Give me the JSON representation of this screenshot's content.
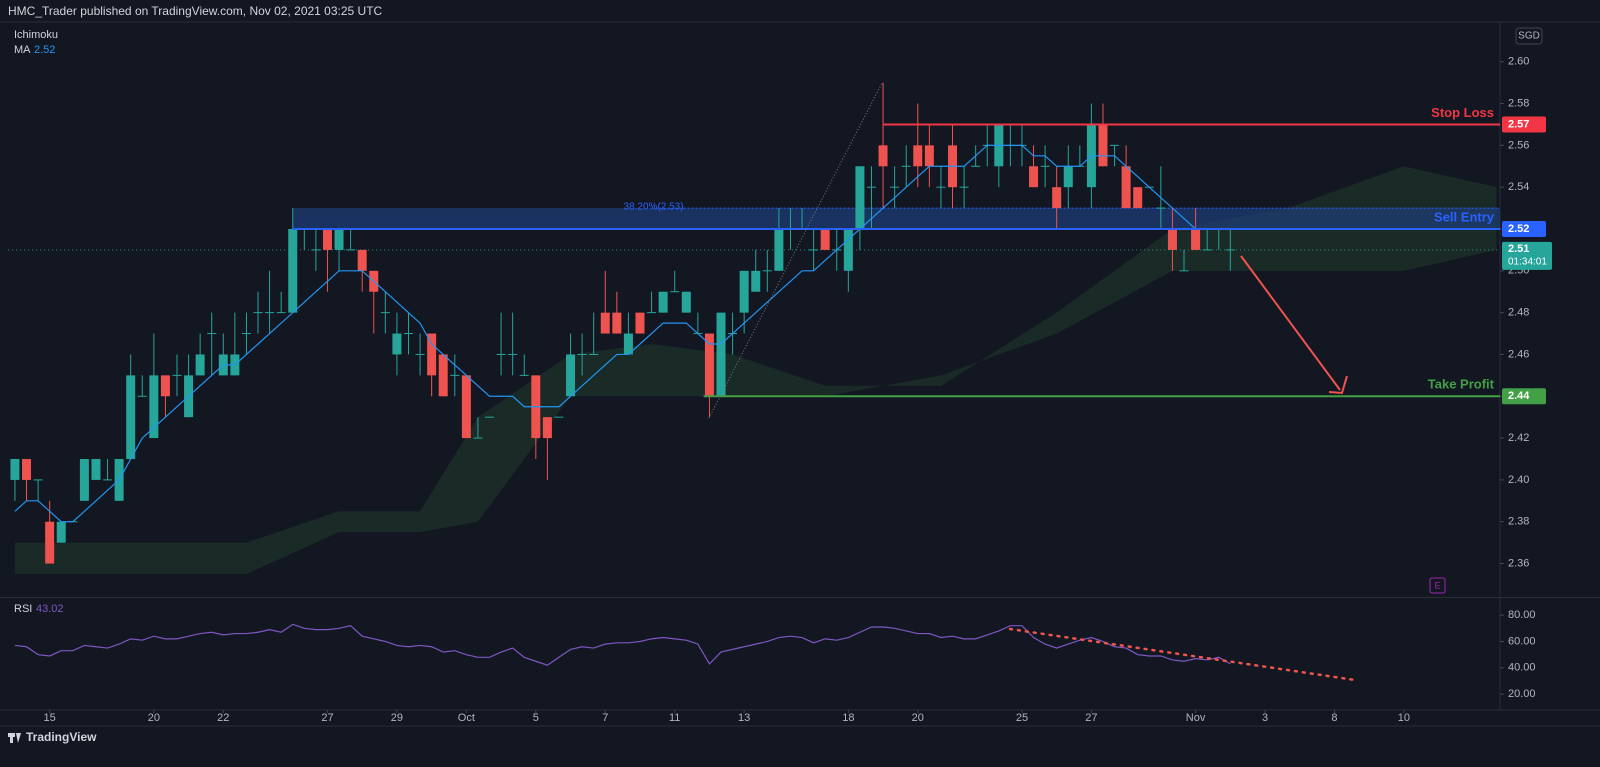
{
  "header": {
    "title": "HMC_Trader published on TradingView.com, Nov 02, 2021 03:25 UTC",
    "currency": "SGD"
  },
  "footer": {
    "brand": "TradingView"
  },
  "chart_data": [
    {
      "type": "candlestick",
      "up_color": "#26a69a",
      "down_color": "#ef5350",
      "xlim": [
        -0.6,
        128.3
      ],
      "ylim": [
        2.344,
        2.619
      ],
      "grid": false,
      "xticks": [
        {
          "value": 3,
          "label": "15"
        },
        {
          "value": 12,
          "label": "20"
        },
        {
          "value": 18,
          "label": "22"
        },
        {
          "value": 27,
          "label": "27"
        },
        {
          "value": 33,
          "label": "29"
        },
        {
          "value": 39,
          "label": "Oct"
        },
        {
          "value": 45,
          "label": "5"
        },
        {
          "value": 51,
          "label": "7"
        },
        {
          "value": 57,
          "label": "11"
        },
        {
          "value": 63,
          "label": "13"
        },
        {
          "value": 72,
          "label": "18"
        },
        {
          "value": 78,
          "label": "20"
        },
        {
          "value": 87,
          "label": "25"
        },
        {
          "value": 93,
          "label": "27"
        },
        {
          "value": 102,
          "label": "Nov"
        },
        {
          "value": 108,
          "label": "3"
        },
        {
          "value": 114,
          "label": "8"
        },
        {
          "value": 120,
          "label": "10"
        }
      ],
      "yticks": [
        2.36,
        2.38,
        {
          "value": 2.4,
          "label": "2.40"
        },
        2.42,
        2.44,
        2.46,
        2.48,
        {
          "value": 2.5,
          "label": "2.50"
        },
        2.52,
        2.54,
        2.56,
        2.58,
        {
          "value": 2.6,
          "label": "2.60"
        }
      ],
      "ohlc": [
        [
          2.4,
          2.41,
          2.39,
          2.41
        ],
        [
          2.41,
          2.41,
          2.39,
          2.4
        ],
        [
          2.4,
          2.4,
          2.39,
          2.4
        ],
        [
          2.38,
          2.39,
          2.36,
          2.36
        ],
        [
          2.37,
          2.38,
          2.37,
          2.38
        ],
        [
          2.38,
          2.38,
          2.38,
          2.38
        ],
        [
          2.39,
          2.41,
          2.39,
          2.41
        ],
        [
          2.4,
          2.41,
          2.4,
          2.41
        ],
        [
          2.4,
          2.41,
          2.4,
          2.4
        ],
        [
          2.39,
          2.41,
          2.39,
          2.41
        ],
        [
          2.41,
          2.46,
          2.41,
          2.45
        ],
        [
          2.44,
          2.45,
          2.44,
          2.44
        ],
        [
          2.42,
          2.47,
          2.42,
          2.45
        ],
        [
          2.45,
          2.45,
          2.43,
          2.44
        ],
        [
          2.45,
          2.46,
          2.44,
          2.45
        ],
        [
          2.43,
          2.46,
          2.43,
          2.45
        ],
        [
          2.45,
          2.47,
          2.45,
          2.46
        ],
        [
          2.47,
          2.48,
          2.45,
          2.47
        ],
        [
          2.45,
          2.47,
          2.45,
          2.46
        ],
        [
          2.45,
          2.48,
          2.45,
          2.46
        ],
        [
          2.47,
          2.48,
          2.46,
          2.47
        ],
        [
          2.48,
          2.49,
          2.47,
          2.48
        ],
        [
          2.48,
          2.5,
          2.47,
          2.48
        ],
        [
          2.48,
          2.49,
          2.48,
          2.48
        ],
        [
          2.48,
          2.53,
          2.48,
          2.52
        ],
        [
          2.52,
          2.52,
          2.51,
          2.52
        ],
        [
          2.51,
          2.52,
          2.5,
          2.51
        ],
        [
          2.52,
          2.52,
          2.49,
          2.51
        ],
        [
          2.51,
          2.52,
          2.5,
          2.52
        ],
        [
          2.51,
          2.52,
          2.51,
          2.51
        ],
        [
          2.51,
          2.51,
          2.49,
          2.5
        ],
        [
          2.5,
          2.5,
          2.47,
          2.49
        ],
        [
          2.48,
          2.49,
          2.47,
          2.48
        ],
        [
          2.46,
          2.48,
          2.45,
          2.47
        ],
        [
          2.47,
          2.48,
          2.46,
          2.47
        ],
        [
          2.46,
          2.47,
          2.45,
          2.46
        ],
        [
          2.47,
          2.47,
          2.44,
          2.45
        ],
        [
          2.46,
          2.46,
          2.44,
          2.44
        ],
        [
          2.45,
          2.46,
          2.44,
          2.45
        ],
        [
          2.45,
          2.45,
          2.42,
          2.42
        ],
        [
          2.42,
          2.43,
          2.42,
          2.42
        ],
        [
          2.43,
          2.43,
          2.43,
          2.43
        ],
        [
          2.46,
          2.48,
          2.45,
          2.46
        ],
        [
          2.46,
          2.48,
          2.45,
          2.46
        ],
        [
          2.45,
          2.46,
          2.45,
          2.45
        ],
        [
          2.45,
          2.45,
          2.41,
          2.42
        ],
        [
          2.43,
          2.43,
          2.4,
          2.42
        ],
        [
          2.43,
          2.43,
          2.43,
          2.43
        ],
        [
          2.44,
          2.47,
          2.44,
          2.46
        ],
        [
          2.46,
          2.47,
          2.45,
          2.46
        ],
        [
          2.46,
          2.48,
          2.46,
          2.46
        ],
        [
          2.48,
          2.5,
          2.47,
          2.47
        ],
        [
          2.48,
          2.49,
          2.47,
          2.47
        ],
        [
          2.46,
          2.48,
          2.46,
          2.47
        ],
        [
          2.48,
          2.48,
          2.47,
          2.47
        ],
        [
          2.48,
          2.49,
          2.48,
          2.48
        ],
        [
          2.48,
          2.49,
          2.48,
          2.49
        ],
        [
          2.49,
          2.5,
          2.49,
          2.49
        ],
        [
          2.48,
          2.49,
          2.48,
          2.49
        ],
        [
          2.47,
          2.48,
          2.47,
          2.47
        ],
        [
          2.47,
          2.47,
          2.43,
          2.44
        ],
        [
          2.44,
          2.48,
          2.44,
          2.48
        ],
        [
          2.47,
          2.48,
          2.46,
          2.47
        ],
        [
          2.48,
          2.5,
          2.47,
          2.5
        ],
        [
          2.49,
          2.51,
          2.49,
          2.5
        ],
        [
          2.5,
          2.51,
          2.49,
          2.5
        ],
        [
          2.5,
          2.53,
          2.5,
          2.52
        ],
        [
          2.52,
          2.53,
          2.51,
          2.52
        ],
        [
          2.52,
          2.53,
          2.52,
          2.52
        ],
        [
          2.51,
          2.52,
          2.5,
          2.51
        ],
        [
          2.52,
          2.52,
          2.51,
          2.51
        ],
        [
          2.51,
          2.52,
          2.5,
          2.51
        ],
        [
          2.5,
          2.52,
          2.49,
          2.52
        ],
        [
          2.52,
          2.55,
          2.51,
          2.55
        ],
        [
          2.54,
          2.55,
          2.52,
          2.54
        ],
        [
          2.56,
          2.59,
          2.53,
          2.55
        ],
        [
          2.54,
          2.55,
          2.53,
          2.54
        ],
        [
          2.55,
          2.56,
          2.54,
          2.55
        ],
        [
          2.56,
          2.58,
          2.54,
          2.55
        ],
        [
          2.56,
          2.57,
          2.54,
          2.55
        ],
        [
          2.54,
          2.55,
          2.53,
          2.54
        ],
        [
          2.56,
          2.57,
          2.53,
          2.54
        ],
        [
          2.54,
          2.55,
          2.53,
          2.54
        ],
        [
          2.55,
          2.56,
          2.55,
          2.55
        ],
        [
          2.56,
          2.57,
          2.55,
          2.56
        ],
        [
          2.55,
          2.57,
          2.54,
          2.57
        ],
        [
          2.56,
          2.57,
          2.55,
          2.56
        ],
        [
          2.56,
          2.57,
          2.55,
          2.56
        ],
        [
          2.55,
          2.56,
          2.54,
          2.54
        ],
        [
          2.55,
          2.56,
          2.54,
          2.55
        ],
        [
          2.54,
          2.55,
          2.52,
          2.53
        ],
        [
          2.54,
          2.56,
          2.53,
          2.55
        ],
        [
          2.55,
          2.56,
          2.55,
          2.55
        ],
        [
          2.54,
          2.58,
          2.53,
          2.57
        ],
        [
          2.57,
          2.58,
          2.55,
          2.55
        ],
        [
          2.56,
          2.56,
          2.55,
          2.56
        ],
        [
          2.55,
          2.56,
          2.53,
          2.53
        ],
        [
          2.54,
          2.54,
          2.53,
          2.53
        ],
        [
          2.54,
          2.54,
          2.54,
          2.54
        ],
        [
          2.53,
          2.55,
          2.52,
          2.53
        ],
        [
          2.52,
          2.53,
          2.5,
          2.51
        ],
        [
          2.5,
          2.51,
          2.5,
          2.5
        ],
        [
          2.52,
          2.53,
          2.51,
          2.51
        ],
        [
          2.51,
          2.52,
          2.51,
          2.51
        ],
        [
          2.52,
          2.52,
          2.51,
          2.52
        ],
        [
          2.51,
          2.52,
          2.5,
          2.51
        ]
      ],
      "series": [
        {
          "name": "MA",
          "color": "#2196f3",
          "values": [
            2.385,
            2.39,
            2.39,
            2.385,
            2.38,
            2.38,
            2.385,
            2.39,
            2.395,
            2.4,
            2.41,
            2.42,
            2.425,
            2.43,
            2.435,
            2.44,
            2.445,
            2.45,
            2.455,
            2.455,
            2.46,
            2.465,
            2.47,
            2.475,
            2.48,
            2.485,
            2.49,
            2.495,
            2.5,
            2.5,
            2.5,
            2.495,
            2.49,
            2.485,
            2.48,
            2.475,
            2.465,
            2.46,
            2.455,
            2.45,
            2.445,
            2.44,
            2.44,
            2.44,
            2.435,
            2.435,
            2.435,
            2.435,
            2.44,
            2.445,
            2.45,
            2.455,
            2.46,
            2.46,
            2.465,
            2.47,
            2.475,
            2.475,
            2.475,
            2.47,
            2.465,
            2.465,
            2.47,
            2.475,
            2.48,
            2.485,
            2.49,
            2.495,
            2.5,
            2.5,
            2.505,
            2.51,
            2.515,
            2.52,
            2.525,
            2.53,
            2.535,
            2.54,
            2.545,
            2.55,
            2.55,
            2.55,
            2.55,
            2.555,
            2.56,
            2.56,
            2.56,
            2.56,
            2.555,
            2.555,
            2.55,
            2.55,
            2.55,
            2.555,
            2.555,
            2.555,
            2.55,
            2.545,
            2.54,
            2.535,
            2.53,
            2.525,
            2.52,
            2.52,
            2.52,
            2.52
          ]
        }
      ],
      "cloud": {
        "name": "Ichimoku",
        "color": "#1f3a2b",
        "x": [
          0,
          20,
          28,
          35,
          40,
          48,
          55,
          62,
          70,
          80,
          90,
          100,
          110,
          120,
          128
        ],
        "top": [
          2.37,
          2.37,
          2.385,
          2.385,
          2.43,
          2.46,
          2.465,
          2.46,
          2.445,
          2.445,
          2.48,
          2.52,
          2.53,
          2.55,
          2.54
        ],
        "bottom": [
          2.355,
          2.355,
          2.375,
          2.375,
          2.38,
          2.44,
          2.44,
          2.44,
          2.44,
          2.45,
          2.47,
          2.5,
          2.5,
          2.5,
          2.51
        ]
      },
      "zone": {
        "low": 2.52,
        "high": 2.53,
        "from": 24,
        "color": "#1e3f7a"
      },
      "fib": {
        "value": 2.53,
        "label": "38.20%(2.53)",
        "from": 55
      },
      "levels": [
        {
          "label": "Stop Loss",
          "value": 2.57,
          "color": "#f23645",
          "from": 75
        },
        {
          "label": "Sell Entry",
          "value": 2.52,
          "color": "#2962ff",
          "from": 24
        },
        {
          "label": "Take Profit",
          "value": 2.44,
          "color": "#43a047",
          "from": 59.5
        }
      ],
      "current_price": 2.51,
      "countdown": "01:34:01",
      "price_color": "#26a69a"
    },
    {
      "type": "line",
      "ylim": [
        8,
        93
      ],
      "yticks": [
        {
          "value": 20,
          "label": "20.00"
        },
        {
          "value": 40,
          "label": "40.00"
        },
        {
          "value": 60,
          "label": "60.00"
        },
        {
          "value": 80,
          "label": "80.00"
        }
      ],
      "series": [
        {
          "name": "RSI",
          "color": "#7e57c2",
          "values": [
            57,
            56,
            50,
            49,
            53,
            53,
            57,
            56,
            55,
            58,
            62,
            61,
            64,
            62,
            62,
            64,
            66,
            67,
            65,
            66,
            66,
            67,
            69,
            67,
            73,
            70,
            69,
            69,
            70,
            72,
            64,
            62,
            60,
            57,
            56,
            57,
            56,
            52,
            53,
            50,
            48,
            48,
            52,
            55,
            48,
            45,
            42,
            48,
            54,
            56,
            55,
            58,
            59,
            59,
            60,
            62,
            63,
            62,
            61,
            58,
            43,
            52,
            54,
            56,
            58,
            60,
            63,
            64,
            63,
            59,
            62,
            61,
            63,
            67,
            71,
            71,
            70,
            68,
            66,
            66,
            63,
            64,
            62,
            62,
            65,
            68,
            72,
            72,
            63,
            58,
            55,
            58,
            61,
            63,
            60,
            56,
            55,
            50,
            49,
            49,
            46,
            45,
            47,
            46,
            48,
            43.02
          ]
        }
      ]
    }
  ]
}
